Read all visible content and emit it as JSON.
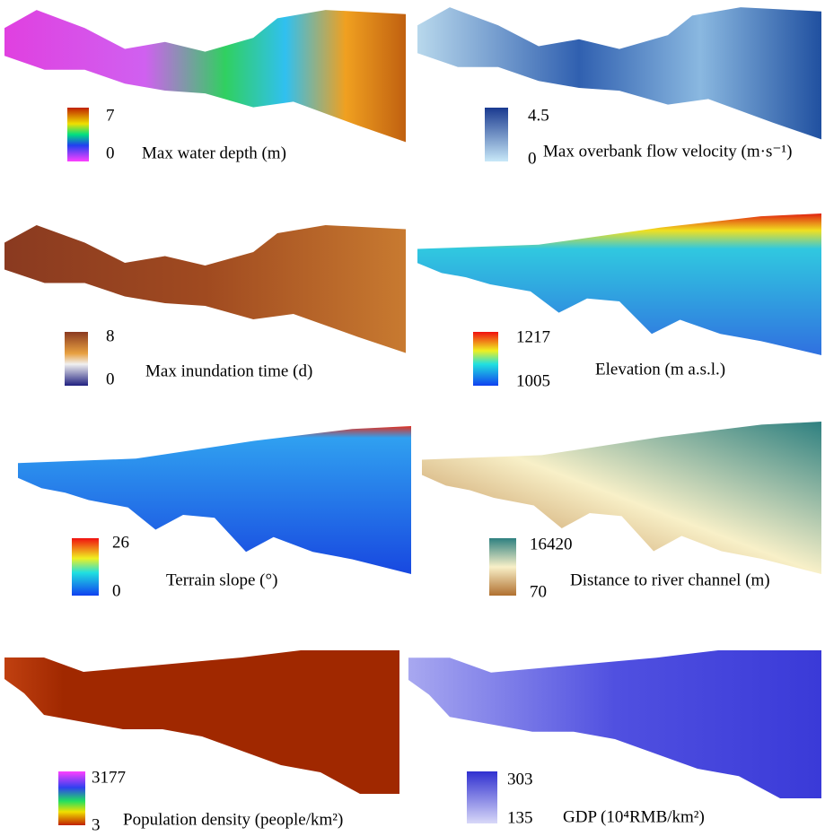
{
  "panels": [
    {
      "title": "Max water depth (m)",
      "max": 7,
      "min": 0
    },
    {
      "title": "Max overbank flow velocity (m·s⁻¹)",
      "max": 4.5,
      "min": 0
    },
    {
      "title": "Max inundation time (d)",
      "max": 8,
      "min": 0
    },
    {
      "title": "Elevation (m a.s.l.)",
      "max": 1217,
      "min": 1005
    },
    {
      "title": "Terrain slope (°)",
      "max": 26,
      "min": 0
    },
    {
      "title": "Distance to river channel (m)",
      "max": 16420,
      "min": 70
    },
    {
      "title": "Population density (people/km²)",
      "max": 3177,
      "min": 3
    },
    {
      "title": "GDP (10⁴RMB/km²)",
      "max": 303,
      "min": 135
    }
  ]
}
